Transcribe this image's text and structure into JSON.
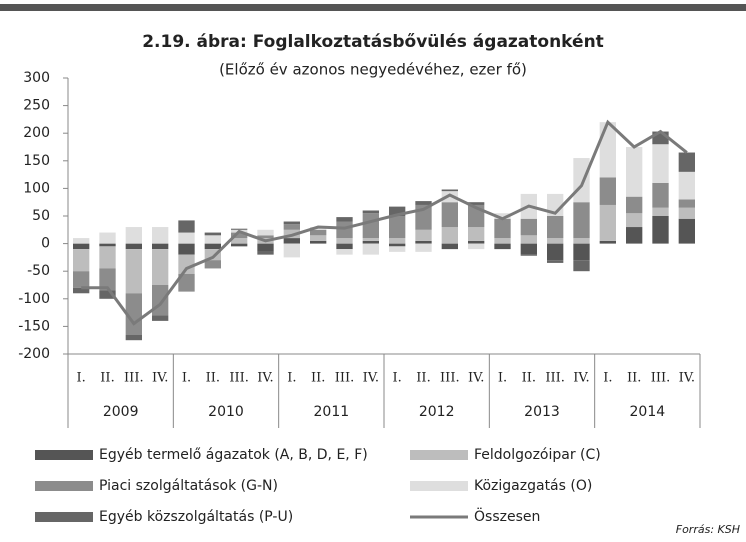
{
  "chart_data": {
    "type": "stacked-bar-line",
    "title": "2.19. ábra: Foglalkoztatásbővülés ágazatonként",
    "subtitle": "(Előző év azonos negyedévéhez, ezer fő)",
    "categories": [
      "I.",
      "II.",
      "III.",
      "IV.",
      "I.",
      "II.",
      "III.",
      "IV.",
      "I.",
      "II.",
      "III.",
      "IV.",
      "I.",
      "II.",
      "III.",
      "IV.",
      "I.",
      "II.",
      "III.",
      "IV.",
      "I.",
      "II.",
      "III.",
      "IV."
    ],
    "years": [
      "2009",
      "2010",
      "2011",
      "2012",
      "2013",
      "2014"
    ],
    "series": [
      {
        "name": "Egyéb termelő ágazatok (A, B, D, E, F)",
        "color": "#555555",
        "values": [
          -10,
          -5,
          -10,
          -10,
          -20,
          -10,
          -5,
          -15,
          10,
          5,
          -10,
          5,
          -5,
          5,
          -10,
          5,
          -10,
          -20,
          -30,
          -30,
          5,
          30,
          50,
          45
        ]
      },
      {
        "name": "Feldolgozóipar (C)",
        "color": "#bdbdbd",
        "values": [
          -40,
          -40,
          -80,
          -65,
          -35,
          -20,
          10,
          10,
          15,
          10,
          10,
          5,
          10,
          20,
          30,
          25,
          10,
          15,
          10,
          10,
          65,
          25,
          15,
          20
        ]
      },
      {
        "name": "Piaci szolgáltatások (G-N)",
        "color": "#8c8c8c",
        "values": [
          -30,
          -40,
          -75,
          -55,
          -32,
          -15,
          10,
          5,
          10,
          10,
          30,
          45,
          40,
          45,
          45,
          40,
          35,
          30,
          40,
          65,
          50,
          30,
          45,
          15
        ]
      },
      {
        "name": "Közigazgatás (O)",
        "color": "#dedede",
        "values": [
          10,
          20,
          30,
          30,
          20,
          15,
          5,
          10,
          -25,
          5,
          -10,
          -20,
          -10,
          -15,
          20,
          -10,
          10,
          45,
          40,
          80,
          100,
          90,
          70,
          50
        ]
      },
      {
        "name": "Egyéb közszolgáltatás (P-U)",
        "color": "#666666",
        "values": [
          -10,
          -15,
          -10,
          -10,
          22,
          5,
          2,
          -5,
          5,
          0,
          8,
          5,
          17,
          7,
          3,
          5,
          0,
          -2,
          -5,
          -20,
          0,
          0,
          23,
          35
        ]
      }
    ],
    "line": {
      "name": "Összesen",
      "color": "#7a7a7a",
      "values": [
        -80,
        -80,
        -145,
        -110,
        -45,
        -25,
        22,
        5,
        15,
        30,
        28,
        40,
        52,
        62,
        88,
        65,
        45,
        68,
        55,
        105,
        220,
        175,
        203,
        165
      ]
    },
    "ylim": [
      -200,
      300
    ],
    "yticks": [
      -200,
      -150,
      -100,
      -50,
      0,
      50,
      100,
      150,
      200,
      250,
      300
    ],
    "source": "Forrás: KSH"
  }
}
